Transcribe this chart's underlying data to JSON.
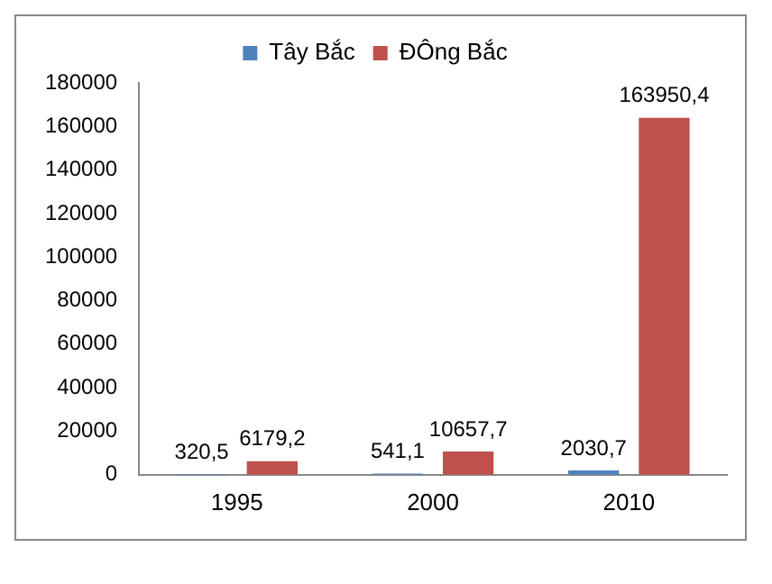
{
  "chart_data": {
    "type": "bar",
    "categories": [
      "1995",
      "2000",
      "2010"
    ],
    "series": [
      {
        "name": "Tây Bắc",
        "color": "#4f81bd",
        "values": [
          320.5,
          541.1,
          2030.7
        ],
        "value_labels": [
          "320,5",
          "541,1",
          "2030,7"
        ]
      },
      {
        "name": "ĐÔng Bắc",
        "color": "#c0504d",
        "values": [
          6179.2,
          10657.7,
          163950.4
        ],
        "value_labels": [
          "6179,2",
          "10657,7",
          "163950,4"
        ]
      }
    ],
    "ylim": [
      0,
      180000
    ],
    "yticks": [
      0,
      20000,
      40000,
      60000,
      80000,
      100000,
      120000,
      140000,
      160000,
      180000
    ],
    "grid": false,
    "legend": "top"
  }
}
